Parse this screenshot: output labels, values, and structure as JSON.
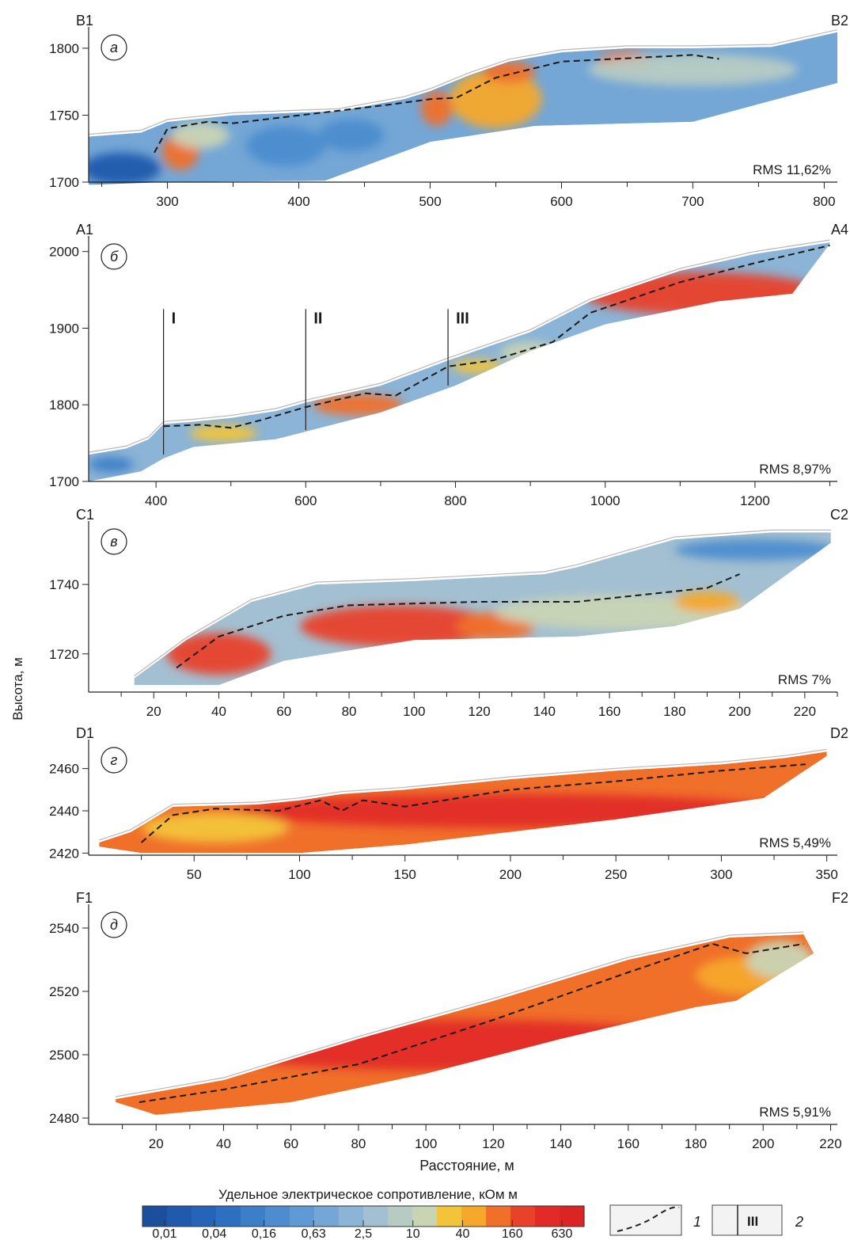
{
  "y_axis_label": "Высота, м",
  "x_axis_label": "Расстояние, м",
  "colorbar": {
    "title": "Удельное электрическое сопротивление, кОм м",
    "tick_labels": [
      "0,01",
      "0,04",
      "0,16",
      "0,63",
      "2,5",
      "10",
      "40",
      "160",
      "630"
    ],
    "colors": [
      "#1a4f9e",
      "#1f5aac",
      "#2564b8",
      "#2e70c0",
      "#3c7ec8",
      "#4c8ccf",
      "#5f9ad4",
      "#74a7d6",
      "#8bb4d6",
      "#a3c0d2",
      "#b6cbc4",
      "#c9d4b4",
      "#f3c43a",
      "#f6a82a",
      "#f0702a",
      "#e8422a",
      "#e22a27",
      "#dd2424"
    ]
  },
  "legend": {
    "item1": "1",
    "item2": "2",
    "item2_symbol": "III"
  },
  "chart_data": [
    {
      "type": "heatmap",
      "panel_label": "а",
      "start_label": "B1",
      "end_label": "B2",
      "rms": "RMS 11,62%",
      "xlim": [
        240,
        810
      ],
      "ylim": [
        1700,
        1810
      ],
      "x_ticks": [
        300,
        400,
        500,
        600,
        700,
        800
      ],
      "y_ticks": [
        1700,
        1750,
        1800
      ],
      "surface": [
        [
          240,
          1734
        ],
        [
          280,
          1737
        ],
        [
          300,
          1745
        ],
        [
          350,
          1750
        ],
        [
          400,
          1752
        ],
        [
          430,
          1753
        ],
        [
          480,
          1762
        ],
        [
          500,
          1768
        ],
        [
          530,
          1780
        ],
        [
          560,
          1790
        ],
        [
          600,
          1797
        ],
        [
          650,
          1800
        ],
        [
          700,
          1800
        ],
        [
          760,
          1801
        ],
        [
          810,
          1812
        ]
      ],
      "bottom": [
        [
          240,
          1698
        ],
        [
          300,
          1700
        ],
        [
          420,
          1701
        ],
        [
          500,
          1730
        ],
        [
          580,
          1742
        ],
        [
          700,
          1745
        ],
        [
          810,
          1774
        ]
      ],
      "boundary": [
        [
          290,
          1722
        ],
        [
          300,
          1740
        ],
        [
          330,
          1745
        ],
        [
          350,
          1744
        ],
        [
          470,
          1758
        ],
        [
          500,
          1762
        ],
        [
          520,
          1763
        ],
        [
          550,
          1778
        ],
        [
          600,
          1790
        ],
        [
          700,
          1795
        ],
        [
          720,
          1792
        ]
      ],
      "bodies": [
        {
          "x": 310,
          "y": 1723,
          "rx": 14,
          "ry": 14,
          "v": 0.8
        },
        {
          "x": 325,
          "y": 1735,
          "rx": 22,
          "ry": 10,
          "v": 0.66
        },
        {
          "x": 550,
          "y": 1762,
          "rx": 35,
          "ry": 22,
          "v": 0.74
        },
        {
          "x": 505,
          "y": 1755,
          "rx": 12,
          "ry": 13,
          "v": 0.84
        },
        {
          "x": 560,
          "y": 1782,
          "rx": 20,
          "ry": 8,
          "v": 0.8
        },
        {
          "x": 650,
          "y": 1790,
          "rx": 22,
          "ry": 8,
          "v": 0.84
        },
        {
          "x": 700,
          "y": 1784,
          "rx": 80,
          "ry": 12,
          "v": 0.56
        },
        {
          "x": 265,
          "y": 1710,
          "rx": 30,
          "ry": 12,
          "v": 0.08
        },
        {
          "x": 390,
          "y": 1727,
          "rx": 30,
          "ry": 15,
          "v": 0.28
        },
        {
          "x": 440,
          "y": 1735,
          "rx": 25,
          "ry": 12,
          "v": 0.3
        }
      ],
      "base_value": 0.4
    },
    {
      "type": "heatmap",
      "panel_label": "б",
      "start_label": "A1",
      "end_label": "A4",
      "rms": "RMS 8,97%",
      "xlim": [
        310,
        1310
      ],
      "ylim": [
        1700,
        2010
      ],
      "x_ticks": [
        400,
        600,
        800,
        1000,
        1200
      ],
      "y_ticks": [
        1700,
        1800,
        1900,
        2000
      ],
      "surface": [
        [
          310,
          1735
        ],
        [
          360,
          1743
        ],
        [
          390,
          1755
        ],
        [
          410,
          1775
        ],
        [
          450,
          1778
        ],
        [
          500,
          1783
        ],
        [
          560,
          1792
        ],
        [
          600,
          1803
        ],
        [
          700,
          1825
        ],
        [
          790,
          1858
        ],
        [
          900,
          1895
        ],
        [
          980,
          1935
        ],
        [
          1100,
          1975
        ],
        [
          1200,
          1997
        ],
        [
          1300,
          2012
        ]
      ],
      "bottom": [
        [
          310,
          1700
        ],
        [
          380,
          1713
        ],
        [
          410,
          1730
        ],
        [
          450,
          1745
        ],
        [
          560,
          1755
        ],
        [
          600,
          1765
        ],
        [
          700,
          1790
        ],
        [
          800,
          1825
        ],
        [
          900,
          1870
        ],
        [
          1000,
          1905
        ],
        [
          1150,
          1935
        ],
        [
          1250,
          1945
        ],
        [
          1300,
          2010
        ]
      ],
      "boundary": [
        [
          410,
          1772
        ],
        [
          460,
          1774
        ],
        [
          500,
          1770
        ],
        [
          540,
          1780
        ],
        [
          600,
          1797
        ],
        [
          680,
          1815
        ],
        [
          720,
          1812
        ],
        [
          790,
          1850
        ],
        [
          850,
          1858
        ],
        [
          930,
          1882
        ],
        [
          980,
          1920
        ],
        [
          1100,
          1960
        ],
        [
          1200,
          1985
        ],
        [
          1300,
          2008
        ]
      ],
      "bodies": [
        {
          "x": 490,
          "y": 1763,
          "rx": 45,
          "ry": 11,
          "v": 0.68
        },
        {
          "x": 670,
          "y": 1800,
          "rx": 60,
          "ry": 14,
          "v": 0.82
        },
        {
          "x": 830,
          "y": 1850,
          "rx": 35,
          "ry": 9,
          "v": 0.72
        },
        {
          "x": 900,
          "y": 1868,
          "rx": 40,
          "ry": 14,
          "v": 0.64
        },
        {
          "x": 1130,
          "y": 1945,
          "rx": 160,
          "ry": 28,
          "v": 0.88
        },
        {
          "x": 340,
          "y": 1722,
          "rx": 30,
          "ry": 10,
          "v": 0.22
        }
      ],
      "base_value": 0.48,
      "profile_markers": [
        {
          "label": "I",
          "x": 410,
          "y1": 1735,
          "y2": 1925
        },
        {
          "label": "II",
          "x": 600,
          "y1": 1767,
          "y2": 1925
        },
        {
          "label": "III",
          "x": 790,
          "y1": 1825,
          "y2": 1925
        }
      ]
    },
    {
      "type": "heatmap",
      "panel_label": "в",
      "start_label": "C1",
      "end_label": "C2",
      "rms": "RMS 7%",
      "xlim": [
        0,
        230
      ],
      "ylim": [
        1709,
        1756
      ],
      "x_ticks": [
        20,
        40,
        60,
        80,
        100,
        120,
        140,
        160,
        180,
        200,
        220
      ],
      "y_ticks": [
        1720,
        1740
      ],
      "surface": [
        [
          14,
          1713
        ],
        [
          30,
          1724
        ],
        [
          50,
          1735
        ],
        [
          70,
          1740
        ],
        [
          100,
          1741
        ],
        [
          140,
          1743
        ],
        [
          150,
          1745
        ],
        [
          180,
          1753
        ],
        [
          210,
          1755
        ],
        [
          228,
          1755
        ]
      ],
      "bottom": [
        [
          14,
          1711
        ],
        [
          40,
          1711
        ],
        [
          60,
          1718
        ],
        [
          100,
          1724
        ],
        [
          150,
          1725
        ],
        [
          180,
          1728
        ],
        [
          200,
          1733
        ],
        [
          228,
          1752
        ]
      ],
      "boundary": [
        [
          27,
          1716
        ],
        [
          40,
          1725
        ],
        [
          60,
          1731
        ],
        [
          80,
          1734
        ],
        [
          120,
          1735
        ],
        [
          150,
          1735
        ],
        [
          190,
          1739
        ],
        [
          200,
          1743
        ]
      ],
      "bodies": [
        {
          "x": 40,
          "y": 1720,
          "rx": 16,
          "ry": 6,
          "v": 0.9
        },
        {
          "x": 95,
          "y": 1728,
          "rx": 30,
          "ry": 6,
          "v": 0.86
        },
        {
          "x": 125,
          "y": 1728,
          "rx": 12,
          "ry": 4,
          "v": 0.82
        },
        {
          "x": 165,
          "y": 1732,
          "rx": 40,
          "ry": 5,
          "v": 0.66
        },
        {
          "x": 190,
          "y": 1735,
          "rx": 10,
          "ry": 3,
          "v": 0.78
        },
        {
          "x": 205,
          "y": 1750,
          "rx": 25,
          "ry": 3,
          "v": 0.3
        }
      ],
      "base_value": 0.5
    },
    {
      "type": "heatmap",
      "panel_label": "г",
      "start_label": "D1",
      "end_label": "D2",
      "rms": "RMS 5,49%",
      "xlim": [
        0,
        355
      ],
      "ylim": [
        2419,
        2470
      ],
      "x_ticks": [
        50,
        100,
        150,
        200,
        250,
        300,
        350
      ],
      "y_ticks": [
        2420,
        2440,
        2460
      ],
      "surface": [
        [
          5,
          2425
        ],
        [
          20,
          2430
        ],
        [
          40,
          2442
        ],
        [
          80,
          2443
        ],
        [
          100,
          2445
        ],
        [
          120,
          2448
        ],
        [
          150,
          2450
        ],
        [
          200,
          2455
        ],
        [
          250,
          2459
        ],
        [
          300,
          2462
        ],
        [
          330,
          2465
        ],
        [
          350,
          2468
        ]
      ],
      "bottom": [
        [
          5,
          2423
        ],
        [
          25,
          2420
        ],
        [
          100,
          2420
        ],
        [
          150,
          2424
        ],
        [
          200,
          2430
        ],
        [
          250,
          2436
        ],
        [
          320,
          2446
        ],
        [
          350,
          2466
        ]
      ],
      "boundary": [
        [
          25,
          2425
        ],
        [
          40,
          2438
        ],
        [
          60,
          2441
        ],
        [
          90,
          2440
        ],
        [
          110,
          2445
        ],
        [
          120,
          2440
        ],
        [
          130,
          2445
        ],
        [
          150,
          2442
        ],
        [
          200,
          2450
        ],
        [
          250,
          2454
        ],
        [
          300,
          2459
        ],
        [
          340,
          2462
        ]
      ],
      "bodies": [
        {
          "x": 200,
          "y": 2440,
          "rx": 130,
          "ry": 8,
          "v": 0.92
        },
        {
          "x": 60,
          "y": 2432,
          "rx": 35,
          "ry": 7,
          "v": 0.72
        }
      ],
      "base_value": 0.8
    },
    {
      "type": "heatmap",
      "panel_label": "д",
      "start_label": "F1",
      "end_label": "F2",
      "rms": "RMS 5,91%",
      "xlim": [
        0,
        222
      ],
      "ylim": [
        2478,
        2545
      ],
      "x_ticks": [
        20,
        40,
        60,
        80,
        100,
        120,
        140,
        160,
        180,
        200,
        220
      ],
      "y_ticks": [
        2480,
        2500,
        2520,
        2540
      ],
      "surface": [
        [
          8,
          2486
        ],
        [
          40,
          2492
        ],
        [
          80,
          2505
        ],
        [
          120,
          2517
        ],
        [
          160,
          2530
        ],
        [
          190,
          2537
        ],
        [
          212,
          2538
        ]
      ],
      "bottom": [
        [
          8,
          2485
        ],
        [
          20,
          2481
        ],
        [
          60,
          2485
        ],
        [
          100,
          2494
        ],
        [
          140,
          2505
        ],
        [
          180,
          2515
        ],
        [
          192,
          2517
        ],
        [
          215,
          2532
        ]
      ],
      "boundary": [
        [
          15,
          2485
        ],
        [
          40,
          2489
        ],
        [
          80,
          2497
        ],
        [
          120,
          2511
        ],
        [
          160,
          2526
        ],
        [
          185,
          2535
        ],
        [
          195,
          2532
        ],
        [
          212,
          2535
        ]
      ],
      "bodies": [
        {
          "x": 110,
          "y": 2503,
          "rx": 80,
          "ry": 8,
          "v": 0.92
        },
        {
          "x": 195,
          "y": 2525,
          "rx": 15,
          "ry": 6,
          "v": 0.78
        },
        {
          "x": 205,
          "y": 2530,
          "rx": 10,
          "ry": 6,
          "v": 0.66
        }
      ],
      "base_value": 0.8
    }
  ]
}
